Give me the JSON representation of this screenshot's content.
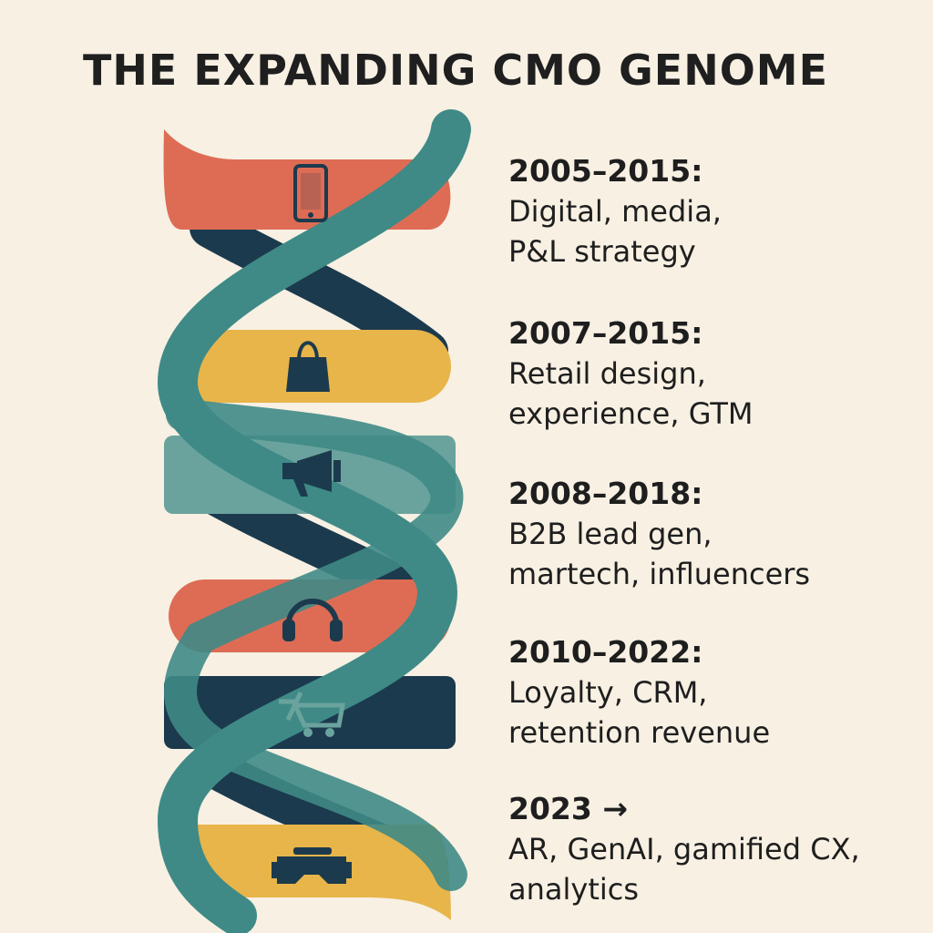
{
  "title": "THE EXPANDING CMO GENOME",
  "colors": {
    "background": "#f7f0e3",
    "coral": "#de6c55",
    "gold": "#e8b54a",
    "teal": "#3f8a86",
    "sage": "#6aa39d",
    "navy": "#1c3a4d",
    "ink": "#1e1e1e"
  },
  "eras": [
    {
      "period": "2005–2015:",
      "description": "Digital, media,\nP&L strategy",
      "icon": "smartphone-icon"
    },
    {
      "period": "2007–2015:",
      "description": "Retail design,\nexperience, GTM",
      "icon": "shopping-bag-icon"
    },
    {
      "period": "2008–2018:",
      "description": "B2B lead gen,\nmartech, influencers",
      "icon": "megaphone-icon"
    },
    {
      "period": "2010–2022:",
      "description": "Loyalty, CRM,\nretention revenue",
      "icon": "headphones-icon"
    },
    {
      "period": "2023 →",
      "description": "AR, GenAI, gamified CX,\nanalytics",
      "icon": "vr-headset-icon"
    }
  ],
  "extra_icons": [
    "shopping-cart-icon"
  ]
}
